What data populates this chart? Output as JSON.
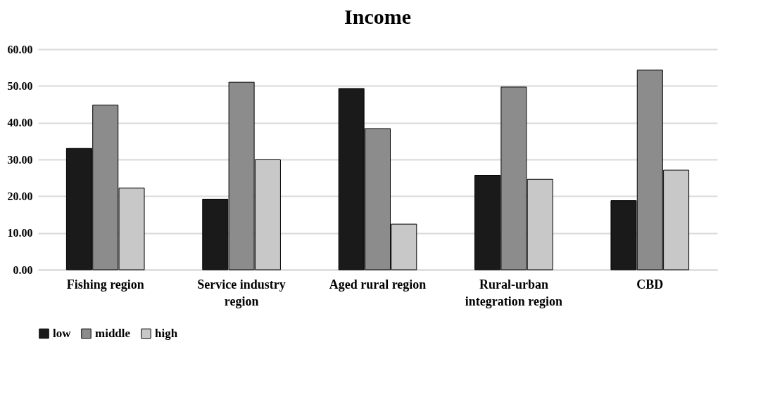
{
  "chart_data": {
    "type": "bar",
    "title": "Income",
    "categories": [
      "Fishing region",
      "Service industry region",
      "Aged rural region",
      "Rural-urban integration region",
      "CBD"
    ],
    "series": [
      {
        "name": "low",
        "color": "#1a1a1a",
        "values": [
          33.0,
          19.2,
          49.3,
          25.7,
          18.8
        ]
      },
      {
        "name": "middle",
        "color": "#8c8c8c",
        "values": [
          44.8,
          51.0,
          38.4,
          49.7,
          54.3
        ]
      },
      {
        "name": "high",
        "color": "#c8c8c8",
        "values": [
          22.2,
          29.9,
          12.4,
          24.6,
          27.1
        ]
      }
    ],
    "ylim": [
      0,
      60
    ],
    "yticks": [
      {
        "value": 0,
        "label": "0.00"
      },
      {
        "value": 10,
        "label": "10.00"
      },
      {
        "value": 20,
        "label": "20.00"
      },
      {
        "value": 30,
        "label": "30.00"
      },
      {
        "value": 40,
        "label": "40.00"
      },
      {
        "value": 50,
        "label": "50.00"
      },
      {
        "value": 60,
        "label": "60.00"
      }
    ],
    "grid": "y",
    "legend": "bottom"
  }
}
